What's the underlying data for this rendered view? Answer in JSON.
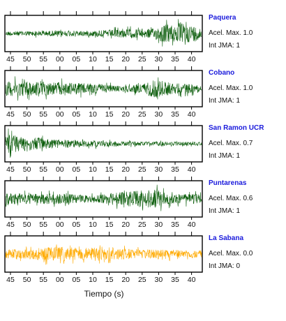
{
  "chart_data": {
    "type": "line",
    "title": "",
    "xlabel": "Tiempo (s)",
    "ylabel": "",
    "x_tick_labels": [
      "45",
      "50",
      "55",
      "00",
      "05",
      "10",
      "15",
      "20",
      "25",
      "30",
      "35",
      "40"
    ],
    "grid": false,
    "panels": [
      {
        "station": "Paquera",
        "accel_label": "Acel. Max. 1.0",
        "jma_label": "Int JMA: 1",
        "color": "#0a5c0a",
        "envelope": [
          [
            0,
            0.25
          ],
          [
            0.45,
            0.3
          ],
          [
            0.6,
            0.45
          ],
          [
            0.75,
            0.5
          ],
          [
            0.8,
            0.95
          ],
          [
            0.92,
            1.0
          ],
          [
            1,
            0.6
          ]
        ]
      },
      {
        "station": "Cobano",
        "accel_label": "Acel. Max. 1.0",
        "jma_label": "Int JMA: 1",
        "color": "#0a5c0a",
        "envelope": [
          [
            0,
            0.75
          ],
          [
            0.12,
            0.8
          ],
          [
            0.3,
            0.65
          ],
          [
            0.5,
            0.45
          ],
          [
            0.6,
            0.25
          ],
          [
            0.7,
            0.55
          ],
          [
            0.77,
            1.0
          ],
          [
            0.85,
            0.6
          ],
          [
            1,
            0.4
          ]
        ]
      },
      {
        "station": "San Ramon UCR",
        "accel_label": "Acel. Max. 0.7",
        "jma_label": "Int JMA: 1",
        "color": "#0a5c0a",
        "envelope": [
          [
            0,
            1.0
          ],
          [
            0.05,
            0.9
          ],
          [
            0.2,
            0.55
          ],
          [
            0.4,
            0.35
          ],
          [
            0.6,
            0.25
          ],
          [
            0.8,
            0.2
          ],
          [
            1,
            0.18
          ]
        ]
      },
      {
        "station": "Puntarenas",
        "accel_label": "Acel. Max. 0.6",
        "jma_label": "Int JMA: 1",
        "color": "#0a5c0a",
        "envelope": [
          [
            0,
            0.55
          ],
          [
            0.3,
            0.55
          ],
          [
            0.45,
            0.35
          ],
          [
            0.55,
            0.65
          ],
          [
            0.7,
            0.9
          ],
          [
            0.75,
            1.0
          ],
          [
            0.85,
            0.5
          ],
          [
            1,
            0.5
          ]
        ]
      },
      {
        "station": "La Sabana",
        "accel_label": "Acel. Max. 0.0",
        "jma_label": "Int JMA: 0",
        "color": "#ffaa00",
        "envelope": [
          [
            0,
            0.45
          ],
          [
            0.15,
            0.6
          ],
          [
            0.25,
            0.75
          ],
          [
            0.4,
            0.65
          ],
          [
            0.5,
            0.8
          ],
          [
            0.6,
            0.55
          ],
          [
            0.8,
            0.45
          ],
          [
            1,
            0.4
          ]
        ]
      }
    ]
  }
}
